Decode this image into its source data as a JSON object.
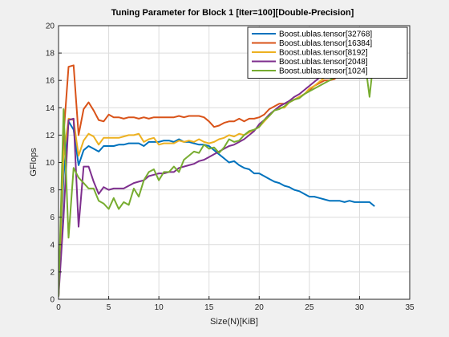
{
  "chart_data": {
    "type": "line",
    "title": "Tuning Parameter for Block 1 [Iter=100][Double-Precision]",
    "xlabel": "Size(N)[KiB]",
    "ylabel": "GFlops",
    "xlim": [
      0,
      35
    ],
    "ylim": [
      0,
      20
    ],
    "xticks": [
      0,
      5,
      10,
      15,
      20,
      25,
      30,
      35
    ],
    "yticks": [
      0,
      2,
      4,
      6,
      8,
      10,
      12,
      14,
      16,
      18,
      20
    ],
    "grid": true,
    "legend_position": "top-right",
    "series": [
      {
        "name": "Boost.ublas.tensor[32768]",
        "color": "#0072bd",
        "x": [
          0,
          0.5,
          1,
          1.5,
          2,
          2.5,
          3,
          3.5,
          4,
          4.5,
          5,
          5.5,
          6,
          6.5,
          7,
          7.5,
          8,
          8.5,
          9,
          9.5,
          10,
          10.5,
          11,
          11.5,
          12,
          12.5,
          13,
          13.5,
          14,
          14.5,
          15,
          15.5,
          16,
          16.5,
          17,
          17.5,
          18,
          18.5,
          19,
          19.5,
          20,
          20.5,
          21,
          21.5,
          22,
          22.5,
          23,
          23.5,
          24,
          24.5,
          25,
          25.5,
          26,
          26.5,
          27,
          27.5,
          28,
          28.5,
          29,
          29.5,
          30,
          30.5,
          31,
          31.5
        ],
        "y": [
          0.2,
          9.0,
          13.0,
          12.4,
          9.8,
          10.9,
          11.2,
          11.0,
          10.8,
          11.2,
          11.2,
          11.2,
          11.3,
          11.3,
          11.4,
          11.4,
          11.4,
          11.2,
          11.5,
          11.5,
          11.5,
          11.6,
          11.6,
          11.5,
          11.7,
          11.5,
          11.5,
          11.4,
          11.3,
          11.3,
          11.2,
          10.9,
          10.6,
          10.3,
          10.0,
          10.1,
          9.8,
          9.6,
          9.5,
          9.2,
          9.2,
          9.0,
          8.8,
          8.6,
          8.5,
          8.3,
          8.2,
          8.0,
          7.9,
          7.7,
          7.5,
          7.5,
          7.4,
          7.3,
          7.2,
          7.2,
          7.2,
          7.1,
          7.2,
          7.1,
          7.1,
          7.1,
          7.1,
          6.8
        ]
      },
      {
        "name": "Boost.ublas.tensor[16384]",
        "color": "#d95319",
        "x": [
          0,
          0.5,
          1,
          1.5,
          2,
          2.5,
          3,
          3.5,
          4,
          4.5,
          5,
          5.5,
          6,
          6.5,
          7,
          7.5,
          8,
          8.5,
          9,
          9.5,
          10,
          10.5,
          11,
          11.5,
          12,
          12.5,
          13,
          13.5,
          14,
          14.5,
          15,
          15.5,
          16,
          16.5,
          17,
          17.5,
          18,
          18.5,
          19,
          19.5,
          20,
          20.5,
          21,
          21.5,
          22,
          22.5,
          23,
          23.5,
          24,
          24.5,
          25,
          25.5,
          26,
          26.5,
          27,
          27.5,
          28,
          28.5
        ],
        "y": [
          0.2,
          12.0,
          17.0,
          17.1,
          12.0,
          13.9,
          14.4,
          13.8,
          13.1,
          13.0,
          13.5,
          13.3,
          13.3,
          13.2,
          13.3,
          13.3,
          13.2,
          13.3,
          13.2,
          13.3,
          13.3,
          13.3,
          13.3,
          13.3,
          13.4,
          13.3,
          13.4,
          13.4,
          13.4,
          13.3,
          13.0,
          12.6,
          12.7,
          12.9,
          13.0,
          13.0,
          13.2,
          13.0,
          13.2,
          13.2,
          13.3,
          13.5,
          13.9,
          14.1,
          14.3,
          14.3,
          14.4,
          14.6,
          14.8,
          15.0,
          15.3,
          15.6,
          15.8,
          16.0,
          16.0,
          16.1,
          16.4,
          17.0
        ]
      },
      {
        "name": "Boost.ublas.tensor[8192]",
        "color": "#edb120",
        "x": [
          0,
          0.5,
          1,
          1.5,
          2,
          2.5,
          3,
          3.5,
          4,
          4.5,
          5,
          5.5,
          6,
          6.5,
          7,
          7.5,
          8,
          8.5,
          9,
          9.5,
          10,
          10.5,
          11,
          11.5,
          12,
          12.5,
          13,
          13.5,
          14,
          14.5,
          15,
          15.5,
          16,
          16.5,
          17,
          17.5,
          18,
          18.5,
          19,
          19.5,
          20,
          20.5,
          21,
          21.5,
          22,
          22.5,
          23,
          23.5,
          24,
          24.5,
          25,
          25.5,
          26,
          26.5,
          27,
          27.5,
          28,
          28.5
        ],
        "y": [
          0.2,
          10.5,
          13.2,
          13.1,
          10.5,
          11.6,
          12.1,
          11.9,
          11.3,
          11.8,
          11.8,
          11.8,
          11.8,
          11.9,
          12.0,
          12.0,
          12.1,
          11.5,
          11.7,
          11.8,
          11.3,
          11.4,
          11.4,
          11.4,
          11.6,
          11.5,
          11.6,
          11.5,
          11.7,
          11.5,
          11.4,
          11.5,
          11.7,
          11.8,
          12.0,
          11.9,
          12.1,
          12.0,
          12.2,
          12.4,
          12.6,
          13.0,
          13.4,
          13.8,
          14.0,
          14.0,
          14.4,
          14.6,
          14.8,
          15.0,
          15.4,
          15.6,
          15.9,
          16.2,
          16.5,
          16.8,
          17.1,
          17.5
        ]
      },
      {
        "name": "Boost.ublas.tensor[2048]",
        "color": "#7e2f8e",
        "x": [
          0,
          0.5,
          1,
          1.5,
          2,
          2.5,
          3,
          3.5,
          4,
          4.5,
          5,
          5.5,
          6,
          6.5,
          7,
          7.5,
          8,
          8.5,
          9,
          9.5,
          10,
          10.5,
          11,
          11.5,
          12,
          12.5,
          13,
          13.5,
          14,
          14.5,
          15,
          15.5,
          16,
          16.5,
          17,
          17.5,
          18,
          18.5,
          19,
          19.5,
          20,
          20.5,
          21,
          21.5,
          22,
          22.5,
          23,
          23.5,
          24,
          24.5,
          25,
          25.5,
          26,
          26.5,
          27,
          27.5,
          28,
          28.5
        ],
        "y": [
          0.2,
          6.0,
          13.1,
          13.2,
          5.3,
          9.7,
          9.7,
          8.6,
          7.7,
          8.2,
          8.0,
          8.1,
          8.1,
          8.1,
          8.3,
          8.5,
          8.6,
          8.7,
          9.0,
          9.1,
          9.2,
          9.2,
          9.3,
          9.3,
          9.6,
          9.7,
          9.8,
          9.9,
          10.1,
          10.2,
          10.4,
          10.6,
          10.8,
          11.0,
          11.2,
          11.3,
          11.5,
          11.7,
          12.0,
          12.3,
          12.8,
          13.1,
          13.5,
          13.8,
          14.1,
          14.3,
          14.5,
          14.8,
          15.0,
          15.3,
          15.6,
          15.9,
          16.2,
          16.5,
          16.8,
          17.2,
          17.6,
          18.0
        ]
      },
      {
        "name": "Boost.ublas.tensor[1024]",
        "color": "#77ac30",
        "x": [
          0,
          0.5,
          1,
          1.5,
          2,
          2.5,
          3,
          3.5,
          4,
          4.5,
          5,
          5.5,
          6,
          6.5,
          7,
          7.5,
          8,
          8.5,
          9,
          9.5,
          10,
          10.5,
          11,
          11.5,
          12,
          12.5,
          13,
          13.5,
          14,
          14.5,
          15,
          15.5,
          16,
          16.5,
          17,
          17.5,
          18,
          18.5,
          19,
          19.5,
          20,
          20.5,
          21,
          21.5,
          22,
          22.5,
          23,
          23.5,
          24,
          24.5,
          25,
          25.5,
          26,
          26.5,
          27,
          27.5,
          28,
          28.5,
          29,
          29.5,
          30,
          30.5,
          31,
          31.5
        ],
        "y": [
          0.2,
          13.9,
          4.5,
          9.6,
          8.9,
          8.5,
          8.1,
          8.1,
          7.2,
          7.0,
          6.6,
          7.4,
          6.6,
          7.1,
          6.9,
          8.1,
          7.5,
          8.7,
          9.3,
          9.5,
          8.7,
          9.3,
          9.3,
          9.7,
          9.3,
          10.2,
          10.5,
          10.8,
          10.7,
          11.3,
          11.0,
          11.1,
          10.7,
          11.1,
          11.7,
          11.5,
          11.6,
          12.0,
          12.3,
          12.4,
          12.6,
          13.1,
          13.4,
          13.8,
          13.9,
          14.1,
          14.4,
          14.6,
          14.7,
          15.0,
          15.2,
          15.4,
          15.6,
          15.8,
          16.0,
          16.2,
          16.6,
          17.0,
          17.5,
          18.0,
          18.7,
          17.6,
          14.8,
          18.2
        ]
      }
    ]
  }
}
